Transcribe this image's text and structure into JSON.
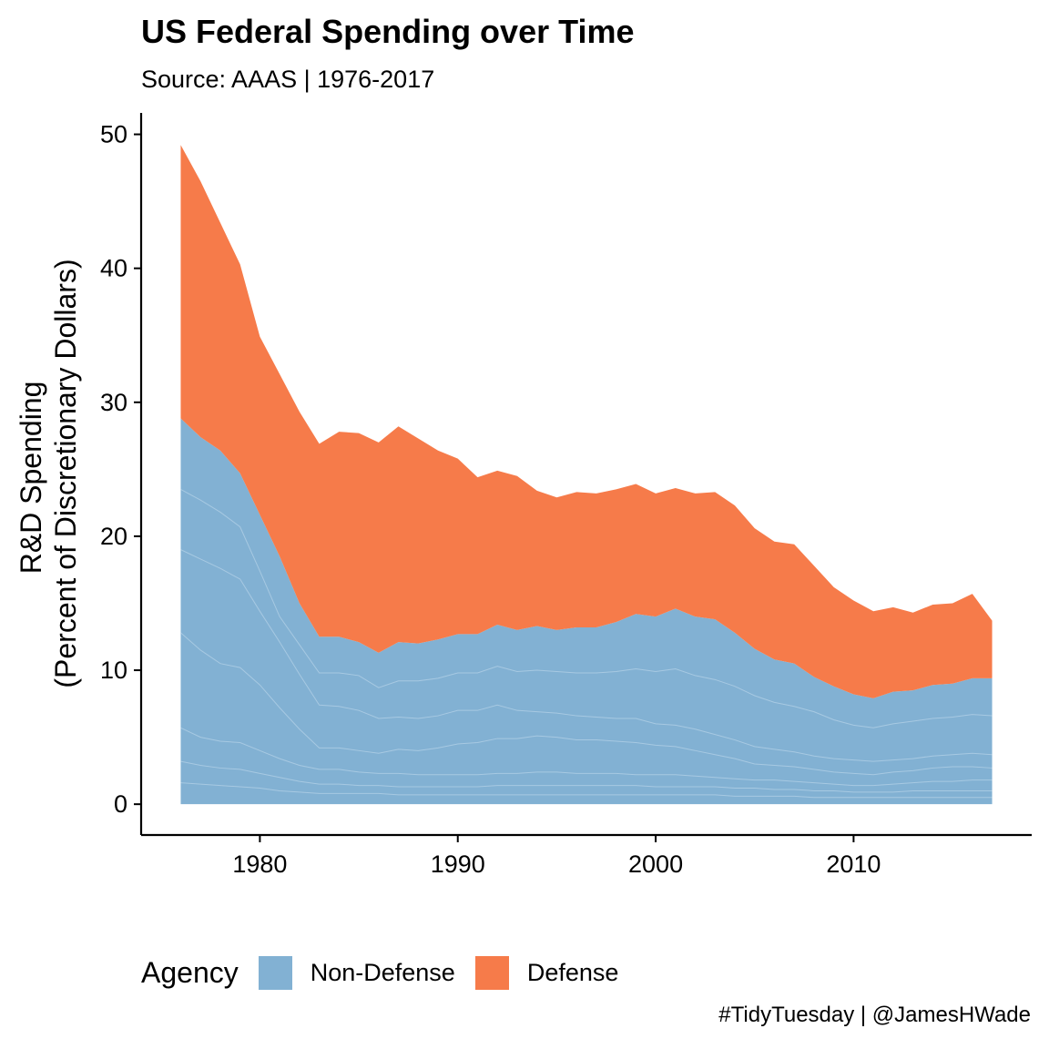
{
  "header": {
    "title": "US Federal Spending over Time",
    "subtitle": "Source: AAAS | 1976-2017"
  },
  "legend": {
    "title": "Agency",
    "items": [
      {
        "label": "Non-Defense",
        "color": "#82b1d3"
      },
      {
        "label": "Defense",
        "color": "#f67b4a"
      }
    ]
  },
  "caption": "#TidyTuesday | @JamesHWade",
  "chart_data": {
    "type": "area",
    "title": "US Federal Spending over Time",
    "subtitle": "Source: AAAS | 1976-2017",
    "xlabel": "",
    "ylabel": "R&D Spending\n(Percent of Discretionary Dollars)",
    "xlim": [
      1974,
      2019
    ],
    "ylim": [
      -2.3,
      51.6
    ],
    "xticks": [
      1980,
      1990,
      2000,
      2010
    ],
    "yticks": [
      0,
      10,
      20,
      30,
      40,
      50
    ],
    "grid": false,
    "stacked": true,
    "legend_position": "bottom",
    "x": [
      1976,
      1977,
      1978,
      1979,
      1980,
      1981,
      1982,
      1983,
      1984,
      1985,
      1986,
      1987,
      1988,
      1989,
      1990,
      1991,
      1992,
      1993,
      1994,
      1995,
      1996,
      1997,
      1998,
      1999,
      2000,
      2001,
      2002,
      2003,
      2004,
      2005,
      2006,
      2007,
      2008,
      2009,
      2010,
      2011,
      2012,
      2013,
      2014,
      2015,
      2016,
      2017
    ],
    "series": [
      {
        "name": "Non-Defense",
        "color": "#82b1d3",
        "values": [
          28.8,
          27.4,
          26.4,
          24.7,
          21.6,
          18.5,
          15.0,
          12.5,
          12.5,
          12.1,
          11.3,
          12.1,
          12.0,
          12.3,
          12.7,
          12.7,
          13.4,
          13.0,
          13.3,
          13.0,
          13.2,
          13.2,
          13.6,
          14.2,
          14.0,
          14.6,
          14.0,
          13.8,
          12.8,
          11.6,
          10.8,
          10.5,
          9.5,
          8.8,
          8.2,
          7.9,
          8.4,
          8.5,
          8.9,
          9.0,
          9.4,
          9.4
        ]
      },
      {
        "name": "Defense",
        "color": "#f67b4a",
        "values": [
          20.4,
          19.1,
          17.0,
          15.6,
          13.3,
          13.6,
          14.3,
          14.4,
          15.3,
          15.6,
          15.7,
          16.1,
          15.3,
          14.1,
          13.1,
          11.7,
          11.5,
          11.5,
          10.1,
          9.9,
          10.1,
          10.0,
          9.9,
          9.7,
          9.2,
          9.0,
          9.2,
          9.5,
          9.5,
          9.0,
          8.8,
          8.9,
          8.3,
          7.4,
          7.0,
          6.5,
          6.3,
          5.8,
          6.0,
          6.0,
          6.3,
          4.3
        ]
      }
    ],
    "non_defense_internal_boundaries": [
      [
        23.5,
        22.7,
        21.8,
        20.7,
        17.4,
        14.0,
        11.9,
        9.8,
        9.8,
        9.6,
        8.7,
        9.2,
        9.2,
        9.4,
        9.8,
        9.8,
        10.3,
        9.9,
        10.0,
        9.9,
        9.8,
        9.8,
        9.9,
        10.1,
        9.9,
        10.1,
        9.6,
        9.3,
        8.8,
        8.1,
        7.6,
        7.3,
        6.9,
        6.3,
        5.9,
        5.7,
        6.0,
        6.2,
        6.4,
        6.5,
        6.7,
        6.6
      ],
      [
        19.0,
        18.3,
        17.6,
        16.8,
        14.4,
        12.1,
        9.7,
        7.4,
        7.3,
        7.0,
        6.4,
        6.5,
        6.4,
        6.6,
        7.0,
        7.0,
        7.4,
        7.0,
        6.9,
        6.8,
        6.6,
        6.5,
        6.4,
        6.4,
        6.0,
        5.9,
        5.6,
        5.2,
        4.8,
        4.3,
        4.1,
        3.9,
        3.6,
        3.4,
        3.3,
        3.2,
        3.3,
        3.4,
        3.6,
        3.7,
        3.8,
        3.7
      ],
      [
        12.8,
        11.5,
        10.5,
        10.2,
        8.9,
        7.2,
        5.6,
        4.2,
        4.2,
        4.0,
        3.8,
        4.1,
        4.0,
        4.2,
        4.5,
        4.6,
        4.9,
        4.9,
        5.1,
        5.0,
        4.8,
        4.8,
        4.7,
        4.6,
        4.4,
        4.3,
        4.0,
        3.7,
        3.4,
        3.0,
        2.9,
        2.8,
        2.6,
        2.4,
        2.3,
        2.2,
        2.4,
        2.5,
        2.7,
        2.8,
        2.8,
        2.7
      ],
      [
        5.7,
        5.0,
        4.7,
        4.6,
        4.0,
        3.4,
        2.9,
        2.6,
        2.6,
        2.4,
        2.3,
        2.3,
        2.2,
        2.2,
        2.2,
        2.2,
        2.3,
        2.3,
        2.4,
        2.4,
        2.3,
        2.3,
        2.3,
        2.2,
        2.2,
        2.2,
        2.1,
        2.0,
        1.9,
        1.8,
        1.8,
        1.7,
        1.6,
        1.5,
        1.4,
        1.4,
        1.5,
        1.6,
        1.7,
        1.7,
        1.8,
        1.8
      ],
      [
        3.2,
        2.9,
        2.7,
        2.6,
        2.3,
        2.0,
        1.7,
        1.5,
        1.5,
        1.4,
        1.4,
        1.3,
        1.3,
        1.3,
        1.3,
        1.3,
        1.4,
        1.4,
        1.4,
        1.4,
        1.4,
        1.4,
        1.4,
        1.4,
        1.3,
        1.3,
        1.3,
        1.3,
        1.2,
        1.2,
        1.1,
        1.1,
        1.0,
        1.0,
        0.9,
        0.9,
        0.9,
        1.0,
        1.0,
        1.0,
        1.0,
        1.0
      ],
      [
        1.6,
        1.5,
        1.4,
        1.3,
        1.2,
        1.0,
        0.9,
        0.8,
        0.8,
        0.8,
        0.8,
        0.7,
        0.7,
        0.7,
        0.7,
        0.7,
        0.7,
        0.7,
        0.7,
        0.7,
        0.7,
        0.7,
        0.7,
        0.7,
        0.7,
        0.7,
        0.7,
        0.7,
        0.6,
        0.6,
        0.6,
        0.6,
        0.5,
        0.5,
        0.5,
        0.5,
        0.5,
        0.5,
        0.5,
        0.5,
        0.5,
        0.5
      ]
    ]
  }
}
